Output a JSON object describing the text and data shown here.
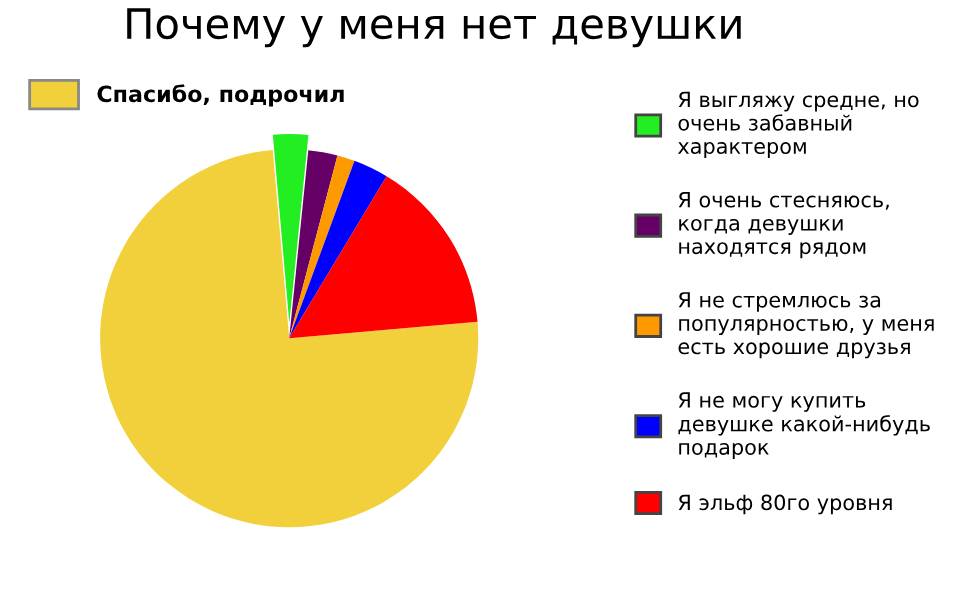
{
  "chart_data": {
    "type": "pie",
    "title": "Почему у меня нет девушки",
    "categories": [
      "Спасибо, подрочил",
      "Я выгляжу средне, но очень забавный характером",
      "Я очень стесняюсь, когда девушки находятся рядом",
      "Я не стремлюсь за популярностью, у меня есть хорошие друзья",
      "Я не могу купить девушке какой-нибудь подарок",
      "Я эльф 80го уровня"
    ],
    "values": [
      75,
      3,
      2.5,
      1.5,
      3,
      15
    ],
    "colors": [
      "#f2d03b",
      "#22ee22",
      "#660066",
      "#ff9900",
      "#0000ff",
      "#ff0000"
    ],
    "legend": "right"
  }
}
